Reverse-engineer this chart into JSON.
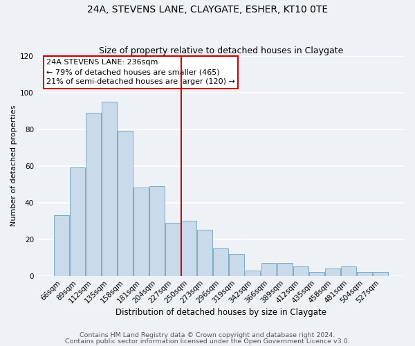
{
  "title": "24A, STEVENS LANE, CLAYGATE, ESHER, KT10 0TE",
  "subtitle": "Size of property relative to detached houses in Claygate",
  "xlabel": "Distribution of detached houses by size in Claygate",
  "ylabel": "Number of detached properties",
  "categories": [
    "66sqm",
    "89sqm",
    "112sqm",
    "135sqm",
    "158sqm",
    "181sqm",
    "204sqm",
    "227sqm",
    "250sqm",
    "273sqm",
    "296sqm",
    "319sqm",
    "342sqm",
    "366sqm",
    "389sqm",
    "412sqm",
    "435sqm",
    "458sqm",
    "481sqm",
    "504sqm",
    "527sqm"
  ],
  "values": [
    33,
    59,
    89,
    95,
    79,
    48,
    49,
    29,
    30,
    25,
    15,
    12,
    3,
    7,
    7,
    5,
    2,
    4,
    5,
    2,
    2
  ],
  "bar_color": "#c9daea",
  "bar_edge_color": "#7aaac8",
  "reference_line_color": "#cc0000",
  "annotation_text_line1": "24A STEVENS LANE: 236sqm",
  "annotation_text_line2": "← 79% of detached houses are smaller (465)",
  "annotation_text_line3": "21% of semi-detached houses are larger (120) →",
  "annotation_box_color": "#ffffff",
  "annotation_box_edge": "#cc0000",
  "ylim": [
    0,
    120
  ],
  "yticks": [
    0,
    20,
    40,
    60,
    80,
    100,
    120
  ],
  "footer_line1": "Contains HM Land Registry data © Crown copyright and database right 2024.",
  "footer_line2": "Contains public sector information licensed under the Open Government Licence v3.0.",
  "background_color": "#eef2f7",
  "grid_color": "#ffffff",
  "title_fontsize": 10,
  "subtitle_fontsize": 9,
  "annotation_fontsize": 8,
  "xlabel_fontsize": 8.5,
  "ylabel_fontsize": 8,
  "footer_fontsize": 6.8,
  "tick_fontsize": 7.5
}
